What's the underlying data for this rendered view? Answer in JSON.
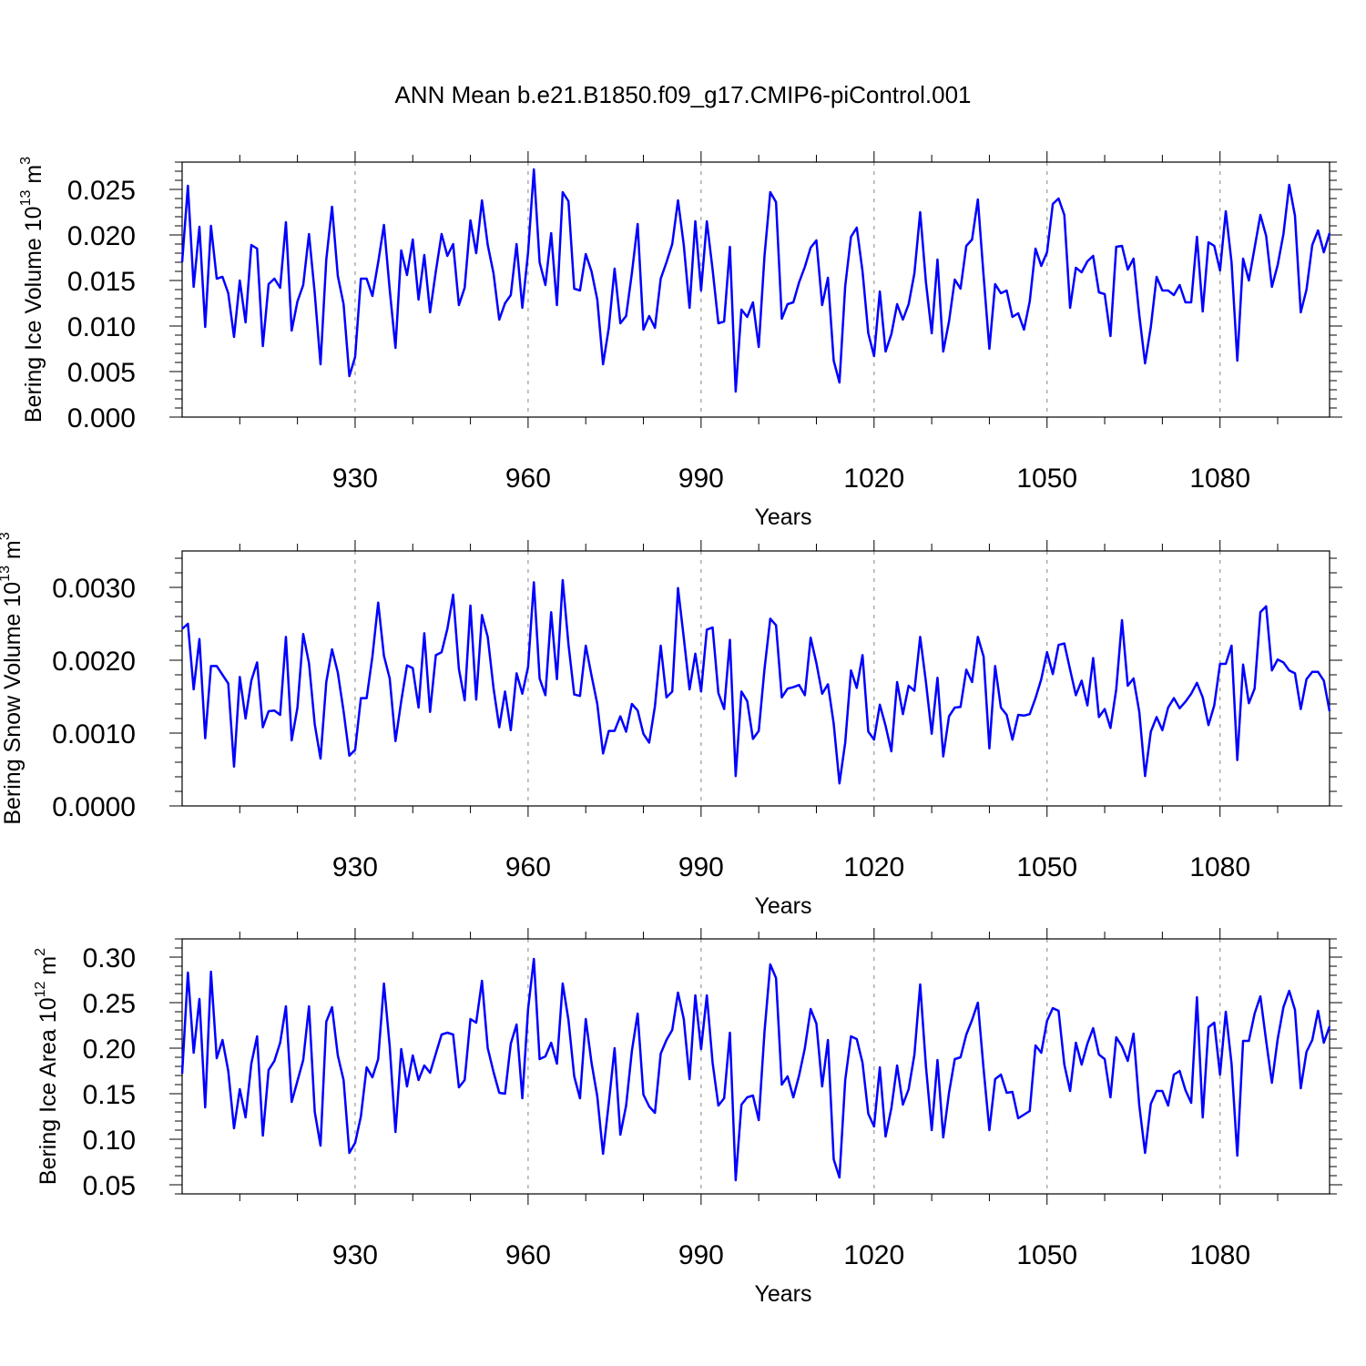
{
  "title": "ANN Mean b.e21.B1850.f09_g17.CMIP6-piControl.001",
  "colors": {
    "line": "#0000ff",
    "grid": "#999999",
    "axes": "#000000"
  },
  "chart_data": [
    {
      "type": "line",
      "xlabel": "Years",
      "ylabel": {
        "text": "Bering Ice Volume 10",
        "sup": "13",
        "unit": " m",
        "unit_sup": "3"
      },
      "xlim": [
        900,
        1099
      ],
      "ylim": [
        0,
        0.028
      ],
      "xticks": [
        930,
        960,
        990,
        1020,
        1050,
        1080
      ],
      "xtick_labels": [
        "930",
        "960",
        "990",
        "1020",
        "1050",
        "1080"
      ],
      "yticks": [
        0,
        0.005,
        0.01,
        0.015,
        0.02,
        0.025
      ],
      "ytick_labels": [
        "0.000",
        "0.005",
        "0.010",
        "0.015",
        "0.020",
        "0.025"
      ],
      "grid": "vertical dashed at x ticks",
      "x_start": 900,
      "series": [
        {
          "values": [
            0.017,
            0.0254,
            0.0143,
            0.0209,
            0.0099,
            0.021,
            0.0152,
            0.0154,
            0.0136,
            0.0088,
            0.015,
            0.0104,
            0.0189,
            0.0185,
            0.0078,
            0.0146,
            0.0152,
            0.0142,
            0.0214,
            0.0095,
            0.0127,
            0.0145,
            0.0201,
            0.0136,
            0.0058,
            0.0173,
            0.0231,
            0.0155,
            0.0124,
            0.0045,
            0.0066,
            0.0152,
            0.0152,
            0.0133,
            0.017,
            0.0211,
            0.014,
            0.0076,
            0.0183,
            0.0156,
            0.0195,
            0.0129,
            0.0178,
            0.0115,
            0.016,
            0.0201,
            0.0177,
            0.019,
            0.0123,
            0.0142,
            0.0216,
            0.018,
            0.0238,
            0.0189,
            0.0158,
            0.0107,
            0.0125,
            0.0134,
            0.019,
            0.012,
            0.0181,
            0.0272,
            0.017,
            0.0145,
            0.0202,
            0.0123,
            0.0247,
            0.0237,
            0.0141,
            0.0139,
            0.0179,
            0.016,
            0.0129,
            0.0058,
            0.0098,
            0.0163,
            0.0103,
            0.0111,
            0.0158,
            0.0212,
            0.0096,
            0.0111,
            0.0098,
            0.0152,
            0.017,
            0.019,
            0.0238,
            0.0189,
            0.012,
            0.0215,
            0.0139,
            0.0215,
            0.0162,
            0.0103,
            0.0105,
            0.0187,
            0.0028,
            0.0118,
            0.011,
            0.0126,
            0.0077,
            0.0177,
            0.0247,
            0.0236,
            0.0108,
            0.0124,
            0.0126,
            0.0148,
            0.0165,
            0.0186,
            0.0194,
            0.0123,
            0.0153,
            0.0062,
            0.0038,
            0.0144,
            0.0198,
            0.0208,
            0.016,
            0.0092,
            0.0067,
            0.0138,
            0.0072,
            0.0091,
            0.0124,
            0.0107,
            0.0124,
            0.0158,
            0.0225,
            0.0148,
            0.0092,
            0.0173,
            0.0072,
            0.0105,
            0.0151,
            0.0141,
            0.0188,
            0.0195,
            0.0239,
            0.0155,
            0.0075,
            0.0146,
            0.0136,
            0.0139,
            0.011,
            0.0114,
            0.0096,
            0.0127,
            0.0185,
            0.0166,
            0.0181,
            0.0234,
            0.024,
            0.0222,
            0.012,
            0.0164,
            0.0159,
            0.0171,
            0.0177,
            0.0137,
            0.0135,
            0.0089,
            0.0187,
            0.0188,
            0.0162,
            0.0174,
            0.0112,
            0.0059,
            0.0099,
            0.0154,
            0.0139,
            0.0139,
            0.0134,
            0.0145,
            0.0126,
            0.0126,
            0.0198,
            0.0116,
            0.0192,
            0.0188,
            0.0161,
            0.0226,
            0.017,
            0.0062,
            0.0174,
            0.015,
            0.0186,
            0.0222,
            0.0199,
            0.0143,
            0.0167,
            0.0201,
            0.0255,
            0.0221,
            0.0115,
            0.014,
            0.0189,
            0.0205,
            0.0181,
            0.0202
          ]
        }
      ]
    },
    {
      "type": "line",
      "xlabel": "Years",
      "ylabel": {
        "text": "Bering Snow Volume 10",
        "sup": "13",
        "unit": " m",
        "unit_sup": "3"
      },
      "xlim": [
        900,
        1099
      ],
      "ylim": [
        0,
        0.0035
      ],
      "xticks": [
        930,
        960,
        990,
        1020,
        1050,
        1080
      ],
      "xtick_labels": [
        "930",
        "960",
        "990",
        "1020",
        "1050",
        "1080"
      ],
      "yticks": [
        0,
        0.001,
        0.002,
        0.003
      ],
      "ytick_labels": [
        "0.0000",
        "0.0010",
        "0.0020",
        "0.0030"
      ],
      "grid": "vertical dashed at x ticks",
      "x_start": 900,
      "series": [
        {
          "values": [
            0.00243,
            0.0025,
            0.0016,
            0.00229,
            0.00093,
            0.00192,
            0.00192,
            0.0018,
            0.00168,
            0.00054,
            0.00177,
            0.0012,
            0.00172,
            0.00197,
            0.00108,
            0.0013,
            0.00131,
            0.00125,
            0.00232,
            0.0009,
            0.00135,
            0.00236,
            0.00196,
            0.00112,
            0.00065,
            0.0017,
            0.00215,
            0.00183,
            0.0013,
            0.00069,
            0.00077,
            0.00148,
            0.00148,
            0.00205,
            0.00279,
            0.00206,
            0.00175,
            0.00089,
            0.00144,
            0.00193,
            0.00189,
            0.00135,
            0.00237,
            0.00129,
            0.00207,
            0.00211,
            0.00243,
            0.0029,
            0.00188,
            0.00145,
            0.00275,
            0.00146,
            0.00262,
            0.00232,
            0.00162,
            0.00108,
            0.00157,
            0.00104,
            0.00182,
            0.00154,
            0.00191,
            0.00307,
            0.00175,
            0.00152,
            0.00266,
            0.00174,
            0.0031,
            0.00222,
            0.00153,
            0.00151,
            0.0022,
            0.00179,
            0.0014,
            0.00072,
            0.00103,
            0.00103,
            0.00123,
            0.00102,
            0.0014,
            0.00131,
            0.00099,
            0.00087,
            0.00137,
            0.0022,
            0.00149,
            0.00157,
            0.00299,
            0.00231,
            0.0016,
            0.00209,
            0.00157,
            0.00242,
            0.00245,
            0.00155,
            0.00133,
            0.00228,
            0.00041,
            0.00157,
            0.00144,
            0.00092,
            0.00103,
            0.00188,
            0.00257,
            0.00248,
            0.00149,
            0.00161,
            0.00163,
            0.00166,
            0.00152,
            0.00231,
            0.00196,
            0.00154,
            0.00167,
            0.00113,
            0.00031,
            0.00087,
            0.00186,
            0.00162,
            0.00207,
            0.00102,
            0.00091,
            0.00139,
            0.0011,
            0.00075,
            0.0017,
            0.00126,
            0.00165,
            0.00158,
            0.00232,
            0.0017,
            0.00099,
            0.00176,
            0.00068,
            0.00123,
            0.00135,
            0.00136,
            0.00187,
            0.0017,
            0.00232,
            0.00205,
            0.00079,
            0.00192,
            0.00135,
            0.00125,
            0.00091,
            0.00125,
            0.00124,
            0.00126,
            0.00148,
            0.00174,
            0.00211,
            0.00181,
            0.00221,
            0.00223,
            0.00187,
            0.00152,
            0.00172,
            0.00138,
            0.00203,
            0.00122,
            0.00133,
            0.00107,
            0.0016,
            0.00255,
            0.00165,
            0.00175,
            0.00129,
            0.00041,
            0.00102,
            0.00122,
            0.00104,
            0.00135,
            0.00148,
            0.00134,
            0.00143,
            0.00154,
            0.00169,
            0.00149,
            0.00111,
            0.00138,
            0.00195,
            0.00195,
            0.0022,
            0.00063,
            0.00194,
            0.00141,
            0.00161,
            0.00266,
            0.00274,
            0.00186,
            0.00201,
            0.00197,
            0.00186,
            0.00182,
            0.00133,
            0.00174,
            0.00184,
            0.00184,
            0.00172,
            0.0013
          ]
        }
      ]
    },
    {
      "type": "line",
      "xlabel": "Years",
      "ylabel": {
        "text": "Bering Ice Area 10",
        "sup": "12",
        "unit": " m",
        "unit_sup": "2"
      },
      "xlim": [
        900,
        1099
      ],
      "ylim": [
        0.04,
        0.32
      ],
      "xticks": [
        930,
        960,
        990,
        1020,
        1050,
        1080
      ],
      "xtick_labels": [
        "930",
        "960",
        "990",
        "1020",
        "1050",
        "1080"
      ],
      "yticks": [
        0.05,
        0.1,
        0.15,
        0.2,
        0.25,
        0.3
      ],
      "ytick_labels": [
        "0.05",
        "0.10",
        "0.15",
        "0.20",
        "0.25",
        "0.30"
      ],
      "grid": "vertical dashed at x ticks",
      "x_start": 900,
      "series": [
        {
          "values": [
            0.172,
            0.283,
            0.195,
            0.254,
            0.135,
            0.284,
            0.189,
            0.209,
            0.175,
            0.112,
            0.155,
            0.124,
            0.183,
            0.213,
            0.104,
            0.176,
            0.186,
            0.206,
            0.246,
            0.141,
            0.164,
            0.187,
            0.246,
            0.13,
            0.093,
            0.229,
            0.245,
            0.192,
            0.165,
            0.085,
            0.096,
            0.125,
            0.179,
            0.168,
            0.188,
            0.271,
            0.202,
            0.108,
            0.199,
            0.158,
            0.192,
            0.165,
            0.181,
            0.173,
            0.194,
            0.215,
            0.217,
            0.215,
            0.157,
            0.165,
            0.232,
            0.228,
            0.274,
            0.2,
            0.174,
            0.151,
            0.15,
            0.205,
            0.226,
            0.145,
            0.243,
            0.298,
            0.188,
            0.191,
            0.206,
            0.183,
            0.271,
            0.231,
            0.169,
            0.145,
            0.232,
            0.184,
            0.147,
            0.084,
            0.14,
            0.2,
            0.105,
            0.137,
            0.197,
            0.238,
            0.149,
            0.136,
            0.129,
            0.194,
            0.209,
            0.22,
            0.261,
            0.232,
            0.166,
            0.258,
            0.199,
            0.258,
            0.184,
            0.137,
            0.145,
            0.217,
            0.055,
            0.138,
            0.146,
            0.148,
            0.121,
            0.218,
            0.292,
            0.277,
            0.16,
            0.169,
            0.146,
            0.17,
            0.2,
            0.243,
            0.227,
            0.158,
            0.209,
            0.078,
            0.058,
            0.165,
            0.213,
            0.21,
            0.184,
            0.128,
            0.114,
            0.179,
            0.103,
            0.134,
            0.181,
            0.138,
            0.155,
            0.193,
            0.27,
            0.18,
            0.11,
            0.187,
            0.102,
            0.151,
            0.188,
            0.19,
            0.215,
            0.231,
            0.25,
            0.177,
            0.11,
            0.166,
            0.171,
            0.151,
            0.152,
            0.123,
            0.127,
            0.131,
            0.203,
            0.195,
            0.23,
            0.244,
            0.241,
            0.182,
            0.153,
            0.206,
            0.182,
            0.205,
            0.222,
            0.193,
            0.188,
            0.146,
            0.212,
            0.202,
            0.186,
            0.216,
            0.137,
            0.085,
            0.139,
            0.153,
            0.153,
            0.137,
            0.171,
            0.175,
            0.154,
            0.14,
            0.256,
            0.124,
            0.223,
            0.228,
            0.171,
            0.24,
            0.183,
            0.082,
            0.208,
            0.208,
            0.238,
            0.257,
            0.208,
            0.162,
            0.21,
            0.245,
            0.263,
            0.242,
            0.156,
            0.196,
            0.209,
            0.241,
            0.206,
            0.224
          ]
        }
      ]
    }
  ]
}
